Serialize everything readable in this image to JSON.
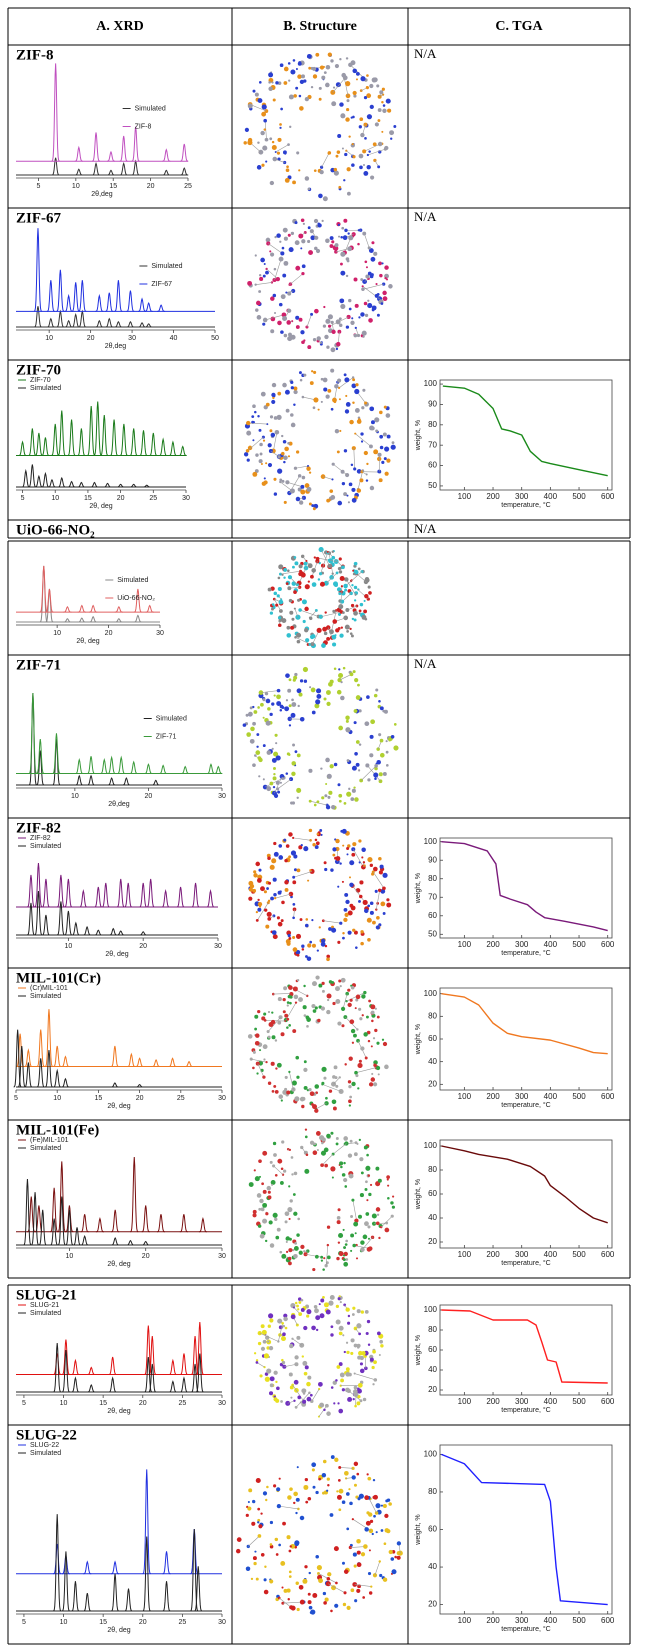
{
  "header": [
    "A.  XRD",
    "B.  Structure",
    "C.  TGA"
  ],
  "rows": [
    {
      "name": "ZIF-8",
      "xrd": {
        "type": "xrd",
        "legend_position": "right",
        "xlim": [
          2,
          25
        ],
        "xticks": [
          5,
          10,
          15,
          20,
          25
        ],
        "xlabel": "2θ,deg",
        "series": [
          {
            "name": "Simulated",
            "color": "#333333",
            "peaks_x": [
              7.3,
              10.4,
              12.7,
              14.7,
              16.4,
              18,
              22.1,
              24.5
            ],
            "peaks_y": [
              15,
              5,
              10,
              4,
              10,
              12,
              4,
              6
            ]
          },
          {
            "name": "ZIF-8",
            "color": "#c050c0",
            "peaks_x": [
              7.3,
              10.4,
              12.7,
              14.7,
              16.4,
              18,
              22.1,
              24.5
            ],
            "peaks_y": [
              85,
              12,
              25,
              8,
              22,
              30,
              10,
              15
            ]
          }
        ]
      },
      "tga": "N/A"
    },
    {
      "name": "ZIF-67",
      "xrd": {
        "type": "xrd",
        "legend_position": "right",
        "xlim": [
          2,
          50
        ],
        "xticks": [
          10,
          20,
          30,
          40,
          50
        ],
        "xlabel": "2θ,deg",
        "series": [
          {
            "name": "Simulated",
            "color": "#333333",
            "peaks_x": [
              7.3,
              10.4,
              12.7,
              14.7,
              16.4,
              18,
              22.1,
              24.5,
              26.7,
              29.6,
              32.4,
              34
            ],
            "peaks_y": [
              20,
              8,
              15,
              6,
              12,
              15,
              6,
              8,
              5,
              5,
              4,
              3
            ]
          },
          {
            "name": "ZIF-67",
            "color": "#2030e0",
            "peaks_x": [
              7.3,
              10.4,
              12.7,
              14.7,
              16.4,
              18,
              22.1,
              24.5,
              26.7,
              29.6,
              32.4,
              34,
              37
            ],
            "peaks_y": [
              80,
              30,
              40,
              15,
              28,
              30,
              15,
              18,
              30,
              20,
              12,
              8,
              6
            ]
          }
        ]
      },
      "tga": "N/A"
    },
    {
      "name": "ZIF-70",
      "xrd": {
        "type": "xrd",
        "legend_position": "top-left",
        "xlim": [
          4,
          30
        ],
        "xticks": [
          5,
          10,
          15,
          20,
          25,
          30
        ],
        "xlabel": "2θ, deg",
        "series": [
          {
            "name": "ZIF-70",
            "color": "#1a7a1a",
            "peaks_x": [
              5,
              6.5,
              7.5,
              8.5,
              10,
              11,
              12.5,
              14,
              15.5,
              16.5,
              17.5,
              19,
              20.5,
              22,
              23.5,
              25,
              26.5,
              28,
              29.5
            ],
            "peaks_y": [
              15,
              30,
              25,
              20,
              35,
              50,
              40,
              30,
              55,
              60,
              45,
              40,
              35,
              30,
              28,
              25,
              18,
              15,
              10
            ]
          },
          {
            "name": "Simulated",
            "color": "#222222",
            "peaks_x": [
              5.5,
              6.5,
              7.5,
              8.5,
              9.5,
              11,
              12.5,
              14,
              16,
              18,
              20,
              22,
              24
            ],
            "peaks_y": [
              18,
              25,
              12,
              15,
              8,
              10,
              6,
              5,
              5,
              4,
              3,
              3,
              2
            ]
          }
        ]
      },
      "tga": {
        "type": "line",
        "color": "#1a8a1a",
        "xlim": [
          15,
          615
        ],
        "ylim": [
          48,
          102
        ],
        "xticks": [
          100,
          200,
          300,
          400,
          500,
          600
        ],
        "yticks": [
          50,
          60,
          70,
          80,
          90,
          100
        ],
        "xlabel": "temperature, °C",
        "ylabel": "weight, %",
        "x": [
          25,
          100,
          150,
          200,
          230,
          260,
          300,
          330,
          370,
          400,
          500,
          600
        ],
        "values": [
          99,
          98,
          95,
          88,
          78,
          77,
          75,
          67,
          62,
          61,
          58,
          55
        ]
      }
    },
    {
      "name": "UiO-66-NO₂",
      "xrd": {
        "type": "xrd",
        "legend_position": "right",
        "xlim": [
          2,
          30
        ],
        "xticks": [
          10,
          20,
          30
        ],
        "xlabel": "2θ, deg",
        "series": [
          {
            "name": "Simulated",
            "color": "#888888",
            "peaks_x": [
              7.4,
              8.5,
              12,
              14.8,
              17,
              22,
              25.7
            ],
            "peaks_y": [
              85,
              50,
              5,
              6,
              8,
              5,
              10
            ]
          },
          {
            "name": "UiO-66-NO₂",
            "color": "#e06060",
            "peaks_x": [
              7.4,
              8.5,
              12,
              14.8,
              17,
              22,
              25.7,
              28
            ],
            "peaks_y": [
              70,
              35,
              8,
              10,
              10,
              8,
              35,
              10
            ]
          }
        ]
      },
      "tga": "N/A"
    },
    {
      "name": "ZIF-71",
      "xrd": {
        "type": "xrd",
        "legend_position": "right",
        "xlim": [
          2,
          30
        ],
        "xticks": [
          10,
          20,
          30
        ],
        "xlabel": "2θ,deg",
        "series": [
          {
            "name": "Simulated",
            "color": "#222222",
            "peaks_x": [
              4.3,
              5.3,
              7.5,
              10.6,
              12.2,
              15,
              17,
              21
            ],
            "peaks_y": [
              80,
              30,
              40,
              8,
              8,
              6,
              6,
              4
            ]
          },
          {
            "name": "ZIF-71",
            "color": "#3a9a3a",
            "peaks_x": [
              4.3,
              5.3,
              7.5,
              10.6,
              12.2,
              14,
              15,
              16.3,
              18,
              20,
              22,
              25,
              28.5,
              29.5
            ],
            "peaks_y": [
              70,
              30,
              35,
              12,
              15,
              12,
              14,
              14,
              10,
              8,
              7,
              6,
              8,
              6
            ]
          }
        ]
      },
      "tga": "N/A"
    },
    {
      "name": "ZIF-82",
      "xrd": {
        "type": "xrd",
        "legend_position": "top-left",
        "xlim": [
          3,
          30
        ],
        "xticks": [
          10,
          20,
          30
        ],
        "xlabel": "2θ, deg",
        "series": [
          {
            "name": "ZIF-82",
            "color": "#7a1a7a",
            "peaks_x": [
              5,
              6,
              7,
              9,
              10,
              12,
              14,
              15,
              17,
              18,
              20,
              21,
              23,
              25,
              27,
              29
            ],
            "peaks_y": [
              40,
              55,
              35,
              40,
              35,
              20,
              25,
              30,
              35,
              30,
              30,
              35,
              20,
              25,
              30,
              20
            ]
          },
          {
            "name": "Simulated",
            "color": "#222222",
            "peaks_x": [
              5,
              6,
              7,
              9,
              10,
              11,
              12.5,
              14,
              16,
              17,
              20
            ],
            "peaks_y": [
              40,
              55,
              25,
              42,
              30,
              15,
              10,
              6,
              8,
              5,
              4
            ]
          }
        ]
      },
      "tga": {
        "type": "line",
        "color": "#7a1a7a",
        "xlim": [
          15,
          615
        ],
        "ylim": [
          48,
          102
        ],
        "xticks": [
          100,
          200,
          300,
          400,
          500,
          600
        ],
        "yticks": [
          50,
          60,
          70,
          80,
          90,
          100
        ],
        "xlabel": "temperature, °C",
        "ylabel": "weight, %",
        "x": [
          20,
          100,
          180,
          210,
          225,
          260,
          320,
          350,
          380,
          450,
          550,
          600
        ],
        "values": [
          100,
          99,
          95,
          88,
          71,
          69,
          66,
          62,
          59,
          57,
          54,
          52
        ]
      }
    },
    {
      "name": "MIL-101(Cr)",
      "xrd": {
        "type": "xrd",
        "legend_position": "top-left",
        "xlim": [
          5,
          30
        ],
        "xticks": [
          5,
          10,
          15,
          20,
          25,
          30
        ],
        "xlabel": "2θ, deg",
        "series": [
          {
            "name": "(Cr)MIL-101",
            "color": "#f07820",
            "peaks_x": [
              5.5,
              6.5,
              8,
              9,
              10,
              11,
              17,
              19,
              20,
              22,
              24,
              26
            ],
            "peaks_y": [
              40,
              20,
              45,
              70,
              25,
              12,
              25,
              15,
              10,
              8,
              10,
              6
            ]
          },
          {
            "name": "Simulated",
            "color": "#222222",
            "peaks_x": [
              5.2,
              5.7,
              6.5,
              8,
              9,
              10,
              11,
              17,
              20
            ],
            "peaks_y": [
              70,
              50,
              30,
              35,
              45,
              20,
              10,
              5,
              3
            ]
          }
        ]
      },
      "tga": {
        "type": "line",
        "color": "#f07820",
        "xlim": [
          15,
          615
        ],
        "ylim": [
          15,
          105
        ],
        "xticks": [
          100,
          200,
          300,
          400,
          500,
          600
        ],
        "yticks": [
          20,
          40,
          60,
          80,
          100
        ],
        "xlabel": "temperature, °C",
        "ylabel": "weight, %",
        "x": [
          20,
          100,
          150,
          200,
          250,
          300,
          400,
          500,
          550,
          600
        ],
        "values": [
          100,
          97,
          90,
          74,
          65,
          62,
          59,
          52,
          48,
          47
        ]
      }
    },
    {
      "name": "MIL-101(Fe)",
      "xrd": {
        "type": "xrd",
        "legend_position": "top-left",
        "xlim": [
          3,
          30
        ],
        "xticks": [
          10,
          20,
          30
        ],
        "xlabel": "2θ, deg",
        "series": [
          {
            "name": "(Fe)MIL-101",
            "color": "#7a1010",
            "peaks_x": [
              5,
              6,
              8,
              9,
              10,
              12,
              14,
              16,
              18.5,
              20,
              22,
              25,
              27.5
            ],
            "peaks_y": [
              40,
              30,
              50,
              80,
              30,
              20,
              15,
              25,
              85,
              30,
              20,
              20,
              15
            ]
          },
          {
            "name": "Simulated",
            "color": "#222222",
            "peaks_x": [
              4.5,
              5.5,
              6.5,
              8,
              9,
              10,
              11,
              12,
              16,
              18,
              20
            ],
            "peaks_y": [
              75,
              60,
              40,
              30,
              55,
              40,
              20,
              10,
              8,
              5,
              4
            ]
          }
        ]
      },
      "tga": {
        "type": "line",
        "color": "#6a0a0a",
        "xlim": [
          15,
          615
        ],
        "ylim": [
          15,
          105
        ],
        "xticks": [
          100,
          200,
          300,
          400,
          500,
          600
        ],
        "yticks": [
          20,
          40,
          60,
          80,
          100
        ],
        "xlabel": "temperature, °C",
        "ylabel": "weight, %",
        "x": [
          20,
          100,
          150,
          250,
          330,
          380,
          400,
          450,
          500,
          550,
          600
        ],
        "values": [
          100,
          96,
          93,
          89,
          83,
          75,
          67,
          58,
          48,
          40,
          36
        ]
      }
    },
    {
      "name": "SLUG-21",
      "xrd": {
        "type": "xrd",
        "legend_position": "top-left",
        "xlim": [
          4,
          30
        ],
        "xticks": [
          5,
          10,
          15,
          20,
          25,
          30
        ],
        "xlabel": "2θ, deg",
        "series": [
          {
            "name": "SLUG-21",
            "color": "#e01010",
            "peaks_x": [
              9.2,
              10.3,
              11.5,
              13.5,
              16.2,
              20.7,
              21.2,
              23.8,
              25.2,
              26.6,
              27.2
            ],
            "peaks_y": [
              30,
              50,
              20,
              10,
              25,
              70,
              55,
              20,
              30,
              55,
              75
            ]
          },
          {
            "name": "Simulated",
            "color": "#222222",
            "peaks_x": [
              9.2,
              10.3,
              11.5,
              13.5,
              16.2,
              20.7,
              21.2,
              23.8,
              25.2,
              26.6,
              27.2
            ],
            "peaks_y": [
              70,
              60,
              20,
              10,
              20,
              50,
              40,
              15,
              20,
              40,
              55
            ]
          }
        ]
      },
      "tga": {
        "type": "line",
        "color": "#ff2020",
        "xlim": [
          15,
          615
        ],
        "ylim": [
          15,
          105
        ],
        "xticks": [
          100,
          200,
          300,
          400,
          500,
          600
        ],
        "yticks": [
          20,
          40,
          60,
          80,
          100
        ],
        "xlabel": "temperature, °C",
        "ylabel": "weight, %",
        "x": [
          20,
          120,
          200,
          320,
          350,
          370,
          390,
          420,
          440,
          600
        ],
        "values": [
          100,
          99,
          90,
          90,
          85,
          68,
          50,
          48,
          28,
          27
        ]
      }
    },
    {
      "name": "SLUG-22",
      "xrd": {
        "type": "xrd",
        "legend_position": "top-left",
        "xlim": [
          4,
          30
        ],
        "xticks": [
          5,
          10,
          15,
          20,
          25,
          30
        ],
        "xlabel": "2θ, deg",
        "series": [
          {
            "name": "SLUG-22",
            "color": "#2030e0",
            "peaks_x": [
              9.2,
              10.3,
              13,
              16.5,
              20.5,
              23,
              26.5
            ],
            "peaks_y": [
              20,
              12,
              8,
              8,
              70,
              15,
              30
            ]
          },
          {
            "name": "Simulated",
            "color": "#222222",
            "peaks_x": [
              9.2,
              10.3,
              11.5,
              13,
              16.5,
              18.2,
              20.5,
              23,
              26.5,
              27
            ],
            "peaks_y": [
              65,
              40,
              20,
              12,
              25,
              15,
              50,
              20,
              55,
              30
            ]
          }
        ]
      },
      "tga": {
        "type": "line",
        "color": "#2020ff",
        "xlim": [
          15,
          615
        ],
        "ylim": [
          15,
          105
        ],
        "xticks": [
          100,
          200,
          300,
          400,
          500,
          600
        ],
        "yticks": [
          20,
          40,
          60,
          80,
          100
        ],
        "xlabel": "temperature, °C",
        "ylabel": "weight, %",
        "x": [
          20,
          100,
          160,
          380,
          400,
          420,
          435,
          600
        ],
        "values": [
          100,
          95,
          85,
          84,
          75,
          40,
          22,
          20
        ]
      }
    }
  ]
}
